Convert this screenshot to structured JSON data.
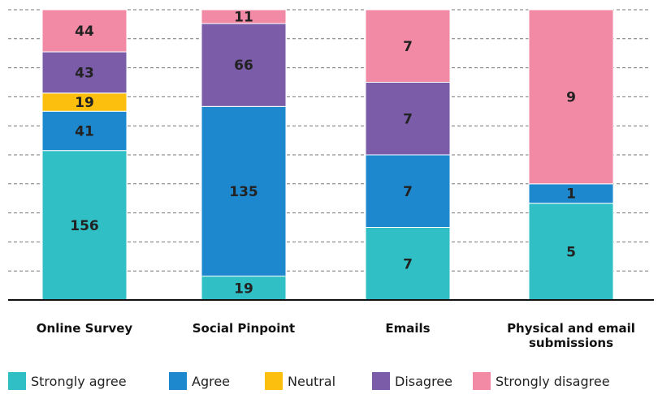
{
  "chart_data": {
    "type": "stacked_bar_100",
    "categories": [
      "Online Survey",
      "Social Pinpoint",
      "Emails",
      "Physical and email submissions"
    ],
    "series": [
      {
        "name": "Strongly agree",
        "color": "#2fbfc4",
        "values": [
          156,
          19,
          7,
          5
        ]
      },
      {
        "name": "Agree",
        "color": "#1e88cf",
        "values": [
          41,
          135,
          7,
          1
        ]
      },
      {
        "name": "Neutral",
        "color": "#fcbf0d",
        "values": [
          19,
          null,
          null,
          null
        ]
      },
      {
        "name": "Disagree",
        "color": "#7a5ca8",
        "values": [
          43,
          66,
          7,
          null
        ]
      },
      {
        "name": "Strongly disagree",
        "color": "#f28aa6",
        "values": [
          44,
          11,
          7,
          9
        ]
      }
    ],
    "ylim": [
      0,
      100
    ],
    "yticks": [
      0,
      10,
      20,
      30,
      40,
      50,
      60,
      70,
      80,
      90,
      100
    ],
    "grid": true
  }
}
